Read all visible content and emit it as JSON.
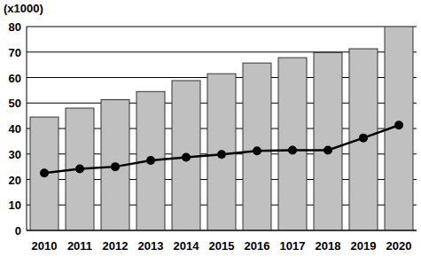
{
  "chart_data": {
    "type": "bar",
    "y_label": "(x1000)",
    "categories": [
      "2010",
      "2011",
      "2012",
      "2013",
      "2014",
      "2015",
      "2016",
      "1017",
      "2018",
      "2019",
      "2020"
    ],
    "series": [
      {
        "type": "bar",
        "color": "#c0c0c0",
        "values": [
          44.5,
          48,
          51.3,
          54.5,
          58.8,
          61.5,
          65.7,
          67.8,
          69.8,
          71.3,
          80
        ]
      },
      {
        "type": "line",
        "color": "#000000",
        "marker": "circle",
        "line_style": "solid",
        "values": [
          22.5,
          24.2,
          25,
          27.5,
          28.7,
          29.8,
          31.2,
          31.5,
          31.5,
          36.3,
          41.3
        ]
      }
    ],
    "ylim": [
      0,
      80
    ],
    "yticks": [
      0,
      10,
      20,
      30,
      40,
      50,
      60,
      70,
      80
    ],
    "grid": true
  }
}
